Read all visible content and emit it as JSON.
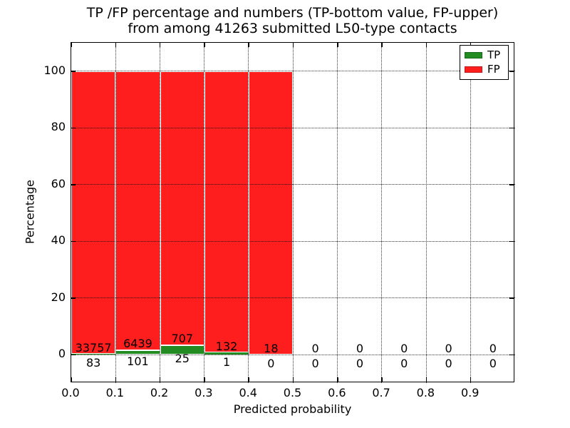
{
  "title": {
    "line1": "TP /FP percentage and numbers (TP-bottom value, FP-upper)",
    "line2": "from among 41263 submitted L50-type contacts"
  },
  "axes": {
    "xlabel": "Predicted probability",
    "ylabel": "Percentage"
  },
  "legend": {
    "items": [
      {
        "label": "TP",
        "color": "#228b22"
      },
      {
        "label": "FP",
        "color": "#ff1e1e"
      }
    ]
  },
  "chart_data": {
    "type": "bar",
    "stacked": true,
    "title": "TP /FP percentage and numbers (TP-bottom value, FP-upper)\nfrom among 41263 submitted L50-type contacts",
    "xlabel": "Predicted probability",
    "ylabel": "Percentage",
    "xlim": [
      0.0,
      1.0
    ],
    "ylim": [
      -10,
      110
    ],
    "x_tick_labels": [
      "0.0",
      "0.1",
      "0.2",
      "0.3",
      "0.4",
      "0.5",
      "0.6",
      "0.7",
      "0.8",
      "0.9"
    ],
    "x_tick_values": [
      0.0,
      0.1,
      0.2,
      0.3,
      0.4,
      0.5,
      0.6,
      0.7,
      0.8,
      0.9
    ],
    "y_tick_values": [
      0,
      20,
      40,
      60,
      80,
      100
    ],
    "grid": "dotted, both axes, drawn above bars",
    "legend_position": "upper right",
    "bin_width": 0.1,
    "bin_starts": [
      0.0,
      0.1,
      0.2,
      0.3,
      0.4,
      0.5,
      0.6,
      0.7,
      0.8,
      0.9
    ],
    "total_submitted": 41263,
    "series": [
      {
        "name": "TP",
        "color": "#228b22",
        "counts": [
          83,
          101,
          25,
          1,
          0,
          0,
          0,
          0,
          0,
          0
        ],
        "pct": [
          0.25,
          1.54,
          3.42,
          0.75,
          0,
          0,
          0,
          0,
          0,
          0
        ]
      },
      {
        "name": "FP",
        "color": "#ff1e1e",
        "counts": [
          33757,
          6439,
          707,
          132,
          18,
          0,
          0,
          0,
          0,
          0
        ],
        "pct": [
          99.75,
          98.46,
          96.58,
          99.25,
          100,
          0,
          0,
          0,
          0,
          0
        ]
      }
    ]
  }
}
